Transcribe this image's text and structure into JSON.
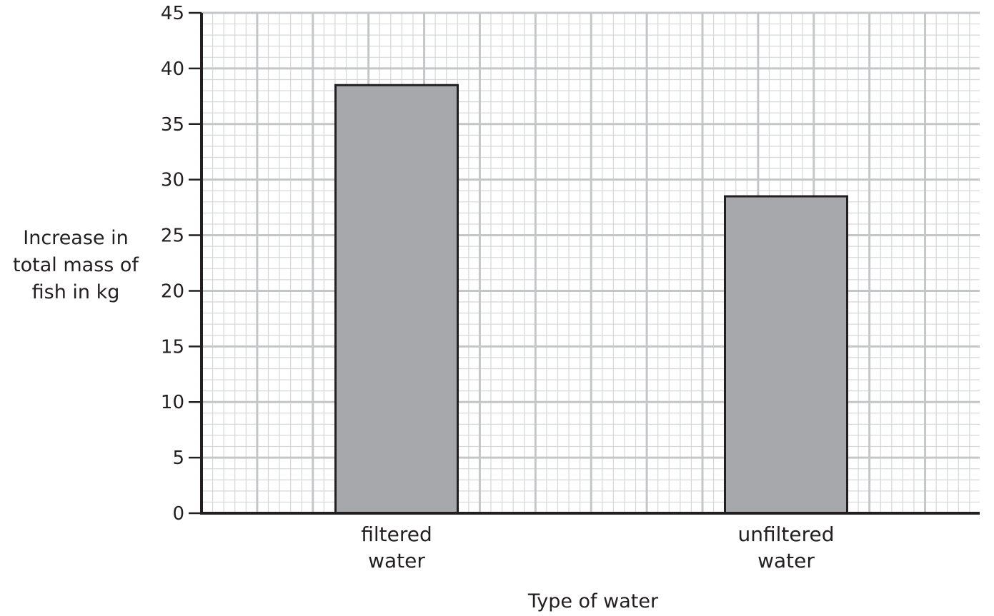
{
  "chart_data": {
    "type": "bar",
    "title": "",
    "ylabel_lines": [
      "Increase in",
      "total mass of",
      "fish in kg"
    ],
    "xlabel": "Type of water",
    "ylim": [
      0,
      45
    ],
    "y_major_step": 5,
    "y_minor_step": 1,
    "yticks": [
      "0",
      "5",
      "10",
      "15",
      "20",
      "25",
      "30",
      "35",
      "40",
      "45"
    ],
    "grid": "graph paper (major and minor)",
    "categories": [
      {
        "lines": [
          "filtered",
          "water"
        ],
        "value": 38.5
      },
      {
        "lines": [
          "unfiltered",
          "water"
        ],
        "value": 28.5
      }
    ],
    "colors": {
      "bar": "#a7a8ab",
      "bar_edge": "#231f20",
      "axis": "#231f20",
      "grid_major": "#c5c6c8",
      "grid_minor": "#d6d7d9"
    }
  }
}
